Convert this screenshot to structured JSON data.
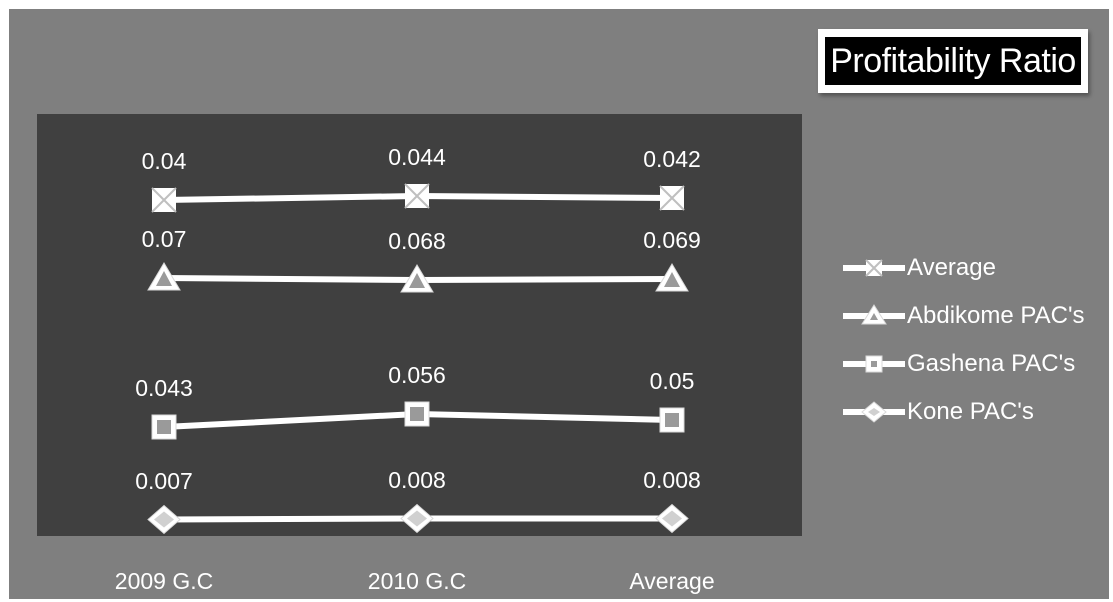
{
  "chart_data": {
    "type": "line",
    "title": "Profitability Ratio",
    "categories": [
      "2009 G.C",
      "2010 G.C",
      "Average"
    ],
    "series": [
      {
        "name": "Average",
        "values": [
          0.04,
          0.044,
          0.042
        ],
        "marker": "cross",
        "labels": [
          "0.04",
          "0.044",
          "0.042"
        ]
      },
      {
        "name": "Abdikome PAC's",
        "values": [
          0.07,
          0.068,
          0.069
        ],
        "marker": "triangle",
        "labels": [
          "0.07",
          "0.068",
          "0.069"
        ]
      },
      {
        "name": "Gashena PAC's",
        "values": [
          0.043,
          0.056,
          0.05
        ],
        "marker": "square",
        "labels": [
          "0.043",
          "0.056",
          "0.05"
        ]
      },
      {
        "name": "Kone PAC's",
        "values": [
          0.007,
          0.008,
          0.008
        ],
        "marker": "diamond",
        "labels": [
          "0.007",
          "0.008",
          "0.008"
        ]
      }
    ],
    "legend_position": "right",
    "grid": false,
    "colors": {
      "background": "#7f7f7f",
      "plot_area": "#404040",
      "line": "#ffffff",
      "text": "#ffffff"
    }
  }
}
